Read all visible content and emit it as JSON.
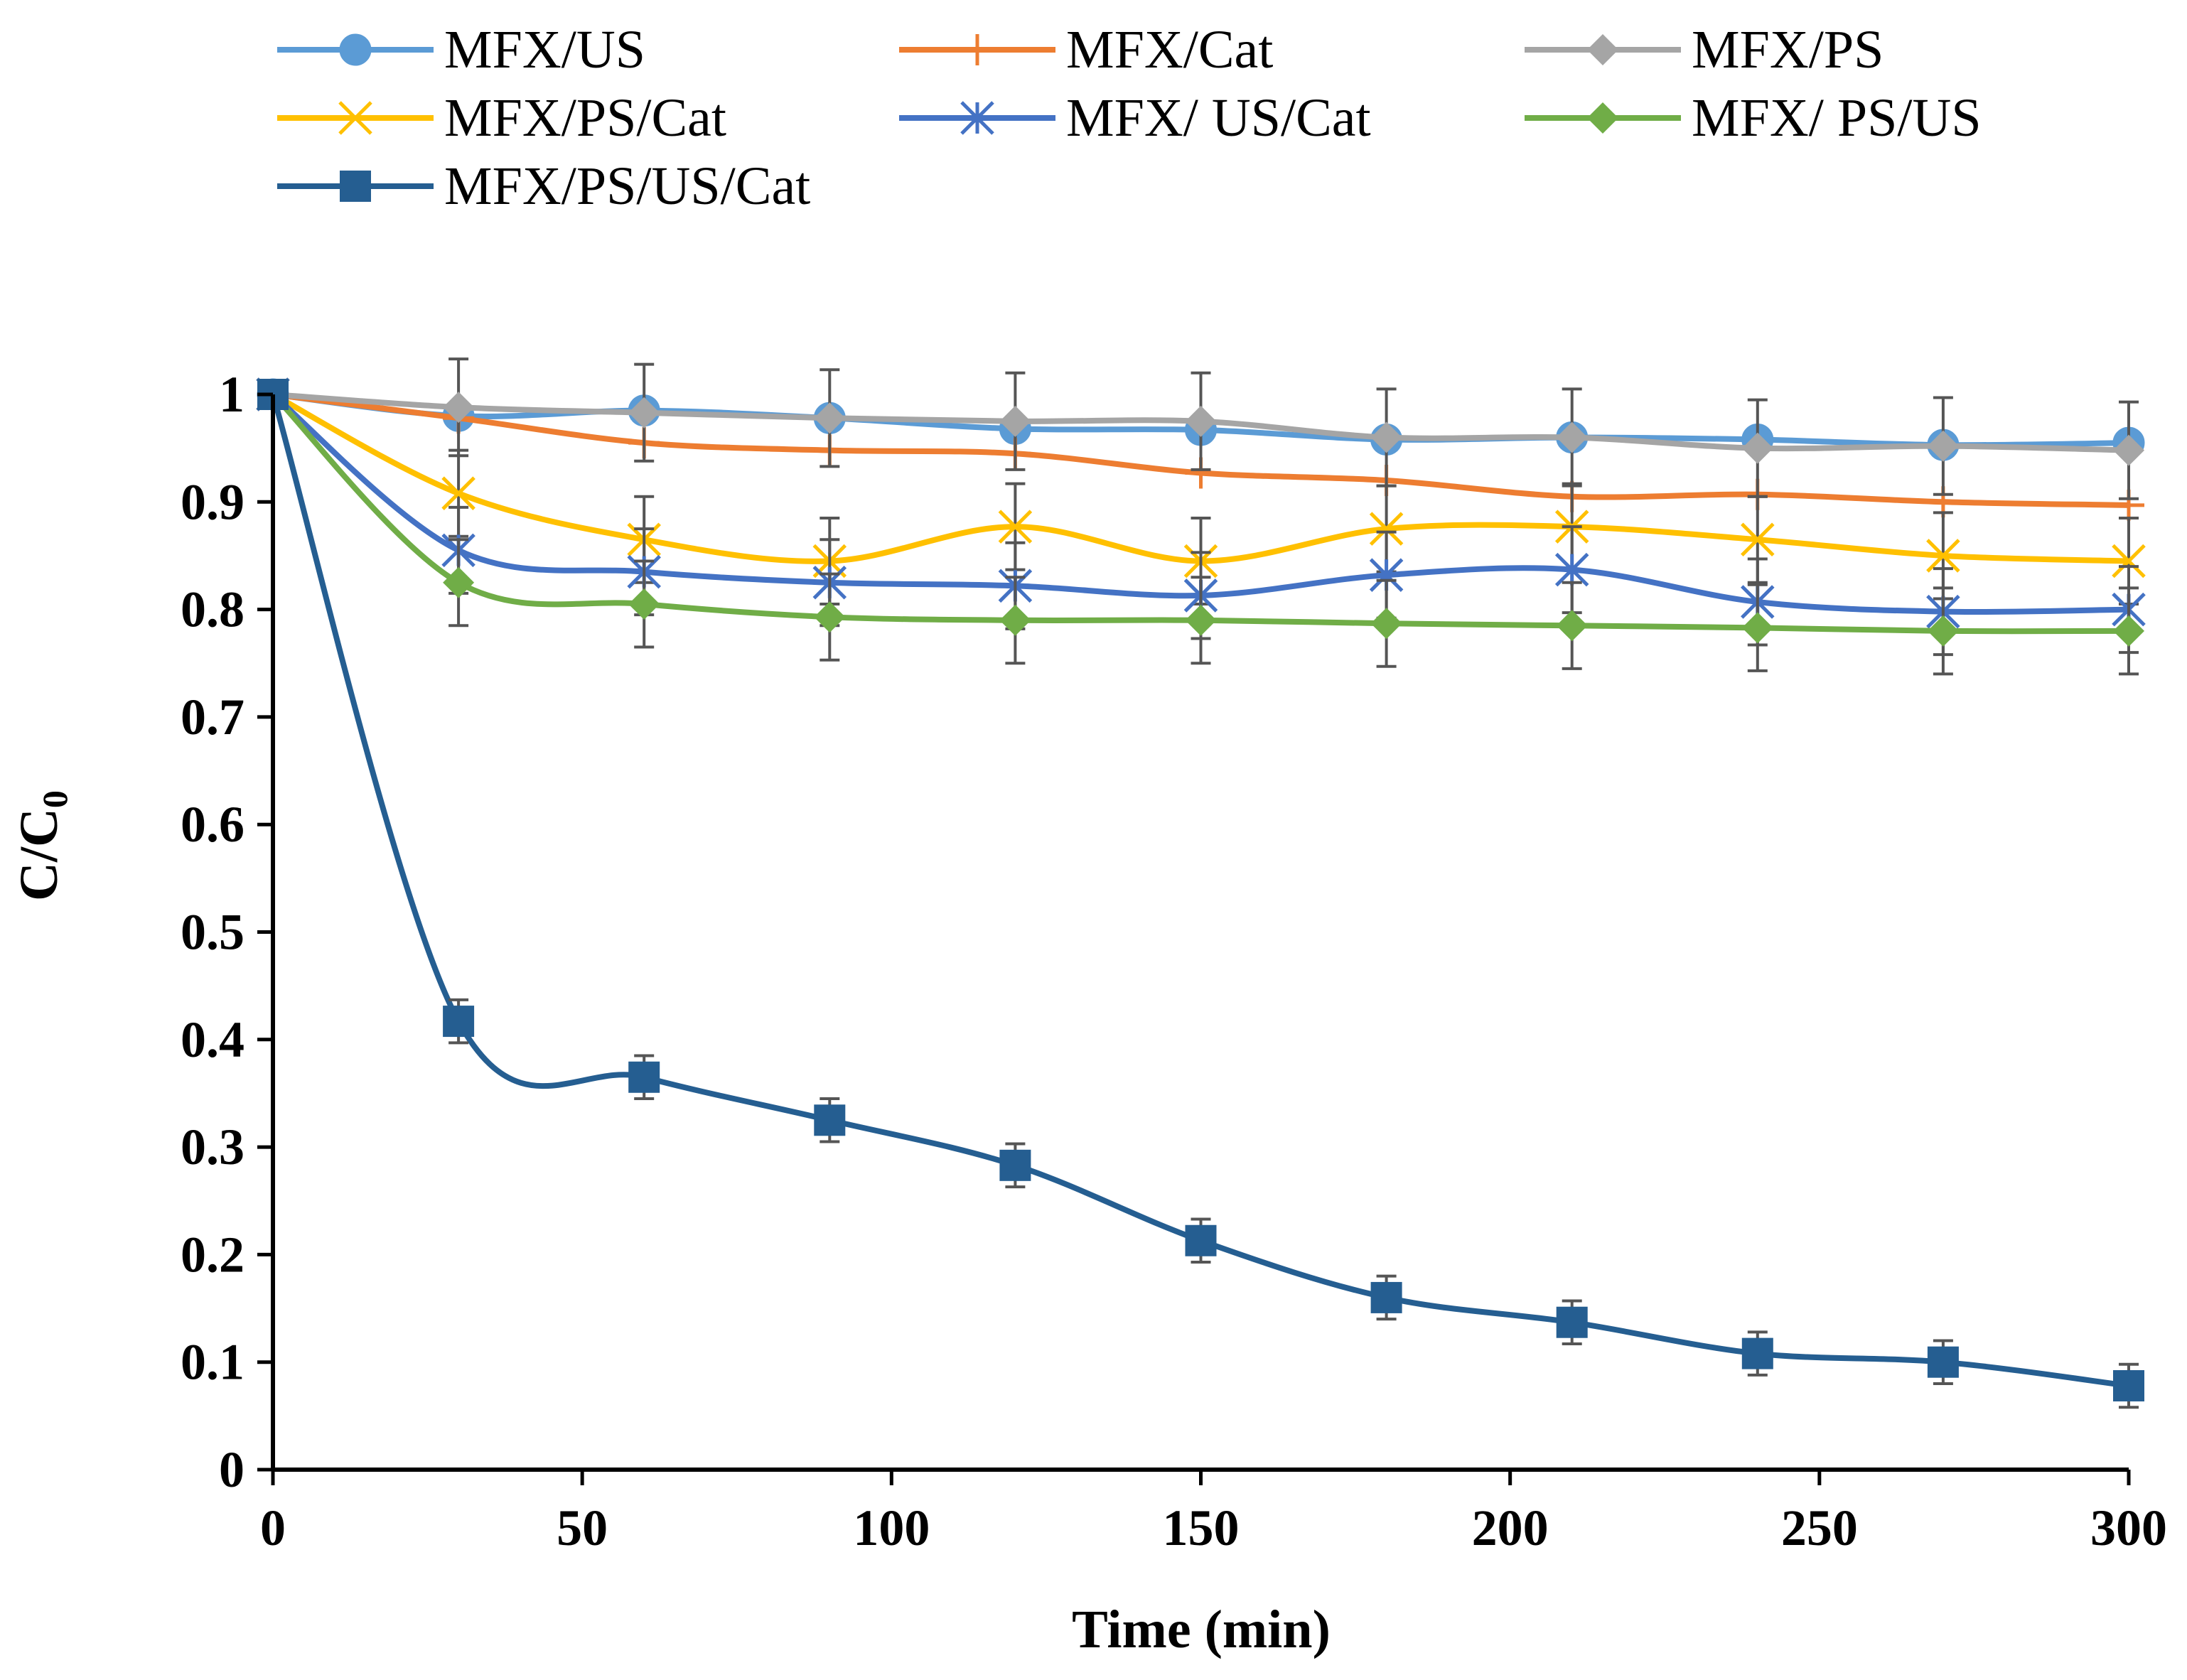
{
  "chart_data": {
    "type": "line",
    "title": "",
    "xlabel": "Time (min)",
    "ylabel_main": "C/C",
    "ylabel_sub": "0",
    "xlim": [
      0,
      300
    ],
    "ylim": [
      0,
      1
    ],
    "x_ticks": [
      "0",
      "50",
      "100",
      "150",
      "200",
      "250",
      "300"
    ],
    "y_ticks": [
      "0",
      "0.1",
      "0.2",
      "0.3",
      "0.4",
      "0.5",
      "0.6",
      "0.7",
      "0.8",
      "0.9",
      "1"
    ],
    "grid": false,
    "legend_position": "top",
    "x": [
      0,
      30,
      60,
      90,
      120,
      150,
      180,
      210,
      240,
      270,
      300
    ],
    "series": [
      {
        "name": "MFX/US",
        "marker": "circle",
        "color": "#5B9BD5",
        "values": [
          1,
          0.98,
          0.985,
          0.978,
          0.968,
          0.967,
          0.958,
          0.96,
          0.958,
          0.953,
          0.955
        ],
        "error": 0
      },
      {
        "name": "MFX/Cat",
        "marker": "plus",
        "color": "#ED7D31",
        "values": [
          1,
          0.978,
          0.955,
          0.948,
          0.945,
          0.927,
          0.92,
          0.905,
          0.907,
          0.9,
          0.897
        ],
        "error": 0
      },
      {
        "name": "MFX/PS",
        "marker": "diamond",
        "color": "#A5A5A5",
        "values": [
          1,
          0.988,
          0.983,
          0.978,
          0.975,
          0.975,
          0.96,
          0.96,
          0.95,
          0.952,
          0.948
        ],
        "error": 0.045
      },
      {
        "name": "MFX/PS/Cat",
        "marker": "x",
        "color": "#FFC000",
        "values": [
          1,
          0.908,
          0.865,
          0.845,
          0.877,
          0.845,
          0.875,
          0.877,
          0.865,
          0.85,
          0.845
        ],
        "error": 0.04
      },
      {
        "name": "MFX/ US/Cat",
        "marker": "star",
        "color": "#4472C4",
        "values": [
          1,
          0.855,
          0.835,
          0.825,
          0.822,
          0.813,
          0.832,
          0.837,
          0.807,
          0.798,
          0.8
        ],
        "error": 0.04
      },
      {
        "name": "MFX/ PS/US",
        "marker": "diamond",
        "color": "#70AD47",
        "values": [
          1,
          0.825,
          0.805,
          0.793,
          0.79,
          0.79,
          0.787,
          0.785,
          0.783,
          0.78,
          0.78
        ],
        "error": 0.04
      },
      {
        "name": "MFX/PS/US/Cat",
        "marker": "square",
        "color": "#255E91",
        "values": [
          1,
          0.417,
          0.365,
          0.325,
          0.283,
          0.213,
          0.16,
          0.137,
          0.108,
          0.1,
          0.078
        ],
        "error": 0.02
      }
    ]
  }
}
